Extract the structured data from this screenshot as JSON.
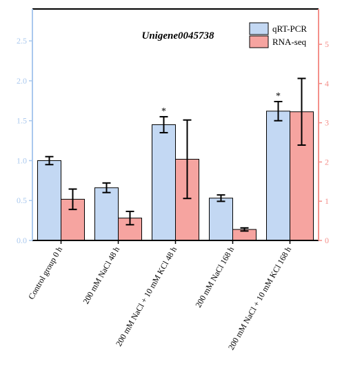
{
  "chart_data": {
    "type": "bar",
    "title": "Unigene0045738",
    "categories": [
      "Control group 0 h",
      "200 mM NaCl 48 h",
      "200 mM NaCl + 10 mM KCl 48 h",
      "200 mM NaCl 168 h",
      "200 mM NaCl + 10 mM KCl 168 h"
    ],
    "series": [
      {
        "name": "qRT-PCR",
        "axis": "left",
        "color": "#c3d8f3",
        "values": [
          1.0,
          0.66,
          1.45,
          0.53,
          1.62
        ],
        "errors": [
          0.05,
          0.06,
          0.1,
          0.04,
          0.12
        ],
        "annotations": [
          "",
          "",
          "*",
          "",
          "*"
        ]
      },
      {
        "name": "RNA-seq",
        "axis": "right",
        "color": "#f6a4a0",
        "values": [
          1.05,
          0.57,
          2.07,
          0.28,
          3.28
        ],
        "errors": [
          0.26,
          0.17,
          1.0,
          0.04,
          0.85
        ],
        "annotations": [
          "",
          "",
          "",
          "",
          ""
        ]
      }
    ],
    "left_axis": {
      "color": "#a9c8ee",
      "ylim": [
        0,
        2.9
      ],
      "ticks": [
        "0.0",
        "0.5",
        "1.0",
        "1.5",
        "2.0",
        "2.5"
      ]
    },
    "right_axis": {
      "color": "#f4908b",
      "ylim": [
        0,
        5.9
      ],
      "ticks": [
        "0",
        "1",
        "2",
        "3",
        "4",
        "5"
      ]
    },
    "legend_position": "top-right",
    "grid": false
  }
}
